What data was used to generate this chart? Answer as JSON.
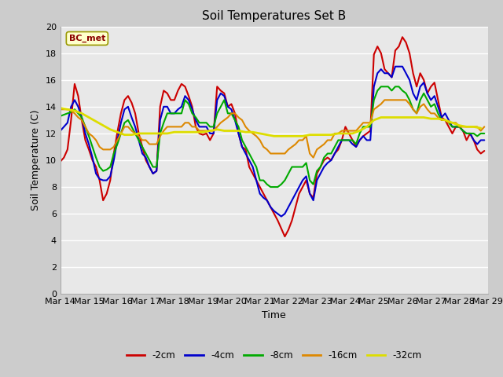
{
  "title": "Soil Temperatures Set B",
  "xlabel": "Time",
  "ylabel": "Soil Temperature (C)",
  "annotation": "BC_met",
  "ylim": [
    0,
    20
  ],
  "series": {
    "-2cm": {
      "color": "#cc0000",
      "lw": 1.5,
      "x": [
        0,
        0.25,
        0.5,
        0.75,
        1,
        1.25,
        1.5,
        1.75,
        2,
        2.25,
        2.5,
        2.75,
        3,
        3.25,
        3.5,
        3.75,
        4,
        4.25,
        4.5,
        4.75,
        5,
        5.25,
        5.5,
        5.75,
        6,
        6.25,
        6.5,
        6.75,
        7,
        7.25,
        7.5,
        7.75,
        8,
        8.25,
        8.5,
        8.75,
        9,
        9.25,
        9.5,
        9.75,
        10,
        10.25,
        10.5,
        10.75,
        11,
        11.25,
        11.5,
        11.75,
        12,
        12.25,
        12.5,
        12.75,
        13,
        13.25,
        13.5,
        13.75,
        14,
        14.25,
        14.5,
        14.75,
        15,
        15.25,
        15.5,
        15.75,
        16,
        16.25,
        16.5,
        16.75,
        17,
        17.25,
        17.5,
        17.75,
        18,
        18.25,
        18.5,
        18.75,
        19,
        19.25,
        19.5,
        19.75,
        20,
        20.25,
        20.5,
        20.75,
        21,
        21.25,
        21.5,
        21.75,
        22,
        22.25,
        22.5,
        22.75,
        23,
        23.25,
        23.5,
        23.75,
        24,
        24.25,
        24.5,
        24.75,
        25,
        25.25,
        25.5,
        25.75,
        26,
        26.25,
        26.5,
        26.75,
        27,
        27.25,
        27.5,
        27.75,
        28,
        28.25,
        28.5,
        28.75,
        29,
        29.25,
        29.5,
        29.75
      ],
      "y": [
        9.9,
        10.2,
        10.8,
        13.0,
        15.7,
        14.8,
        13.0,
        11.5,
        10.8,
        10.0,
        9.5,
        8.5,
        7.0,
        7.5,
        8.5,
        10.5,
        12.1,
        13.5,
        14.5,
        14.8,
        14.3,
        13.5,
        12.0,
        11.0,
        10.0,
        9.5,
        9.0,
        9.2,
        14.0,
        15.2,
        15.0,
        14.5,
        14.5,
        15.2,
        15.7,
        15.5,
        14.8,
        14.0,
        12.5,
        12.0,
        11.9,
        12.0,
        11.5,
        12.0,
        15.5,
        15.2,
        15.0,
        14.0,
        14.2,
        13.5,
        12.0,
        11.0,
        10.8,
        9.5,
        9.0,
        8.5,
        8.0,
        7.5,
        7.0,
        6.5,
        6.0,
        5.5,
        4.9,
        4.3,
        4.8,
        5.5,
        6.5,
        7.5,
        8.0,
        8.5,
        7.5,
        7.2,
        9.0,
        9.5,
        10.0,
        10.2,
        10.0,
        10.5,
        10.8,
        11.5,
        12.5,
        12.0,
        11.5,
        11.0,
        11.5,
        11.8,
        12.0,
        12.2,
        17.9,
        18.5,
        18.0,
        16.8,
        16.5,
        16.2,
        18.2,
        18.5,
        19.2,
        18.8,
        18.0,
        16.5,
        15.5,
        16.5,
        16.0,
        15.0,
        15.5,
        15.8,
        14.5,
        13.2,
        13.0,
        12.5,
        12.0,
        12.5,
        12.5,
        12.2,
        11.5,
        12.0,
        11.5,
        10.8,
        10.5,
        10.7
      ]
    },
    "-4cm": {
      "color": "#0000cc",
      "lw": 1.5,
      "x": [
        0,
        0.25,
        0.5,
        0.75,
        1,
        1.25,
        1.5,
        1.75,
        2,
        2.25,
        2.5,
        2.75,
        3,
        3.25,
        3.5,
        3.75,
        4,
        4.25,
        4.5,
        4.75,
        5,
        5.25,
        5.5,
        5.75,
        6,
        6.25,
        6.5,
        6.75,
        7,
        7.25,
        7.5,
        7.75,
        8,
        8.25,
        8.5,
        8.75,
        9,
        9.25,
        9.5,
        9.75,
        10,
        10.25,
        10.5,
        10.75,
        11,
        11.25,
        11.5,
        11.75,
        12,
        12.25,
        12.5,
        12.75,
        13,
        13.25,
        13.5,
        13.75,
        14,
        14.25,
        14.5,
        14.75,
        15,
        15.25,
        15.5,
        15.75,
        16,
        16.25,
        16.5,
        16.75,
        17,
        17.25,
        17.5,
        17.75,
        18,
        18.25,
        18.5,
        18.75,
        19,
        19.25,
        19.5,
        19.75,
        20,
        20.25,
        20.5,
        20.75,
        21,
        21.25,
        21.5,
        21.75,
        22,
        22.25,
        22.5,
        22.75,
        23,
        23.25,
        23.5,
        23.75,
        24,
        24.25,
        24.5,
        24.75,
        25,
        25.25,
        25.5,
        25.75,
        26,
        26.25,
        26.5,
        26.75,
        27,
        27.25,
        27.5,
        27.75,
        28,
        28.25,
        28.5,
        28.75,
        29,
        29.25,
        29.5,
        29.75
      ],
      "y": [
        12.2,
        12.5,
        12.8,
        14.0,
        14.5,
        14.0,
        13.2,
        12.0,
        11.2,
        10.2,
        9.0,
        8.6,
        8.5,
        8.5,
        8.8,
        10.0,
        11.5,
        12.8,
        13.8,
        14.0,
        13.2,
        12.5,
        11.5,
        10.5,
        10.2,
        9.5,
        9.0,
        9.2,
        13.0,
        14.0,
        14.0,
        13.5,
        13.5,
        13.8,
        14.0,
        14.8,
        14.5,
        13.8,
        13.0,
        12.5,
        12.5,
        12.5,
        12.0,
        12.0,
        14.5,
        15.0,
        14.8,
        14.0,
        13.8,
        13.0,
        12.0,
        11.0,
        10.5,
        10.0,
        9.5,
        8.5,
        7.5,
        7.2,
        7.0,
        6.5,
        6.2,
        6.0,
        5.8,
        6.0,
        6.5,
        7.0,
        7.5,
        8.0,
        8.5,
        8.8,
        7.5,
        7.0,
        8.5,
        9.0,
        9.5,
        9.8,
        10.0,
        10.5,
        11.0,
        11.5,
        11.5,
        11.5,
        11.2,
        11.0,
        11.5,
        11.8,
        11.5,
        11.5,
        15.5,
        16.5,
        16.8,
        16.5,
        16.5,
        16.2,
        17.0,
        17.0,
        17.0,
        16.5,
        16.0,
        15.0,
        14.5,
        15.5,
        15.8,
        15.0,
        14.5,
        14.8,
        14.0,
        13.2,
        13.5,
        13.0,
        12.5,
        12.5,
        12.5,
        12.2,
        12.0,
        12.0,
        11.5,
        11.2,
        11.5,
        11.5
      ]
    },
    "-8cm": {
      "color": "#00aa00",
      "lw": 1.5,
      "x": [
        0,
        0.25,
        0.5,
        0.75,
        1,
        1.25,
        1.5,
        1.75,
        2,
        2.25,
        2.5,
        2.75,
        3,
        3.25,
        3.5,
        3.75,
        4,
        4.25,
        4.5,
        4.75,
        5,
        5.25,
        5.5,
        5.75,
        6,
        6.25,
        6.5,
        6.75,
        7,
        7.25,
        7.5,
        7.75,
        8,
        8.25,
        8.5,
        8.75,
        9,
        9.25,
        9.5,
        9.75,
        10,
        10.25,
        10.5,
        10.75,
        11,
        11.25,
        11.5,
        11.75,
        12,
        12.25,
        12.5,
        12.75,
        13,
        13.25,
        13.5,
        13.75,
        14,
        14.25,
        14.5,
        14.75,
        15,
        15.25,
        15.5,
        15.75,
        16,
        16.25,
        16.5,
        16.75,
        17,
        17.25,
        17.5,
        17.75,
        18,
        18.25,
        18.5,
        18.75,
        19,
        19.25,
        19.5,
        19.75,
        20,
        20.25,
        20.5,
        20.75,
        21,
        21.25,
        21.5,
        21.75,
        22,
        22.25,
        22.5,
        22.75,
        23,
        23.25,
        23.5,
        23.75,
        24,
        24.25,
        24.5,
        24.75,
        25,
        25.25,
        25.5,
        25.75,
        26,
        26.25,
        26.5,
        26.75,
        27,
        27.25,
        27.5,
        27.75,
        28,
        28.25,
        28.5,
        28.75,
        29,
        29.25,
        29.5,
        29.75
      ],
      "y": [
        13.3,
        13.4,
        13.5,
        13.6,
        13.8,
        13.5,
        13.2,
        12.5,
        11.8,
        11.0,
        10.2,
        9.5,
        9.2,
        9.3,
        9.5,
        10.5,
        11.2,
        12.0,
        12.8,
        13.0,
        12.5,
        12.0,
        11.5,
        11.0,
        10.5,
        10.0,
        9.5,
        9.5,
        12.0,
        12.8,
        13.5,
        13.5,
        13.5,
        13.5,
        13.5,
        14.5,
        14.2,
        13.5,
        13.2,
        12.8,
        12.8,
        12.8,
        12.5,
        12.5,
        13.5,
        14.0,
        14.5,
        13.5,
        13.5,
        13.0,
        12.5,
        11.5,
        11.0,
        10.5,
        10.0,
        9.5,
        8.5,
        8.5,
        8.2,
        8.0,
        8.0,
        8.0,
        8.2,
        8.5,
        9.0,
        9.5,
        9.5,
        9.5,
        9.5,
        9.8,
        8.5,
        8.2,
        9.2,
        9.5,
        10.2,
        10.5,
        10.5,
        11.0,
        11.5,
        11.5,
        11.5,
        11.5,
        11.5,
        11.2,
        12.0,
        12.5,
        12.5,
        12.5,
        14.5,
        15.2,
        15.5,
        15.5,
        15.5,
        15.2,
        15.5,
        15.5,
        15.2,
        15.0,
        14.5,
        13.8,
        13.5,
        14.5,
        15.0,
        14.5,
        14.0,
        14.2,
        13.5,
        13.0,
        13.0,
        12.8,
        12.5,
        12.5,
        12.5,
        12.2,
        12.0,
        12.0,
        12.0,
        11.8,
        12.0,
        12.0
      ]
    },
    "-16cm": {
      "color": "#dd8800",
      "lw": 1.5,
      "x": [
        0,
        0.25,
        0.5,
        0.75,
        1,
        1.25,
        1.5,
        1.75,
        2,
        2.25,
        2.5,
        2.75,
        3,
        3.25,
        3.5,
        3.75,
        4,
        4.25,
        4.5,
        4.75,
        5,
        5.25,
        5.5,
        5.75,
        6,
        6.25,
        6.5,
        6.75,
        7,
        7.25,
        7.5,
        7.75,
        8,
        8.25,
        8.5,
        8.75,
        9,
        9.25,
        9.5,
        9.75,
        10,
        10.25,
        10.5,
        10.75,
        11,
        11.25,
        11.5,
        11.75,
        12,
        12.25,
        12.5,
        12.75,
        13,
        13.25,
        13.5,
        13.75,
        14,
        14.25,
        14.5,
        14.75,
        15,
        15.25,
        15.5,
        15.75,
        16,
        16.25,
        16.5,
        16.75,
        17,
        17.25,
        17.5,
        17.75,
        18,
        18.25,
        18.5,
        18.75,
        19,
        19.25,
        19.5,
        19.75,
        20,
        20.25,
        20.5,
        20.75,
        21,
        21.25,
        21.5,
        21.75,
        22,
        22.25,
        22.5,
        22.75,
        23,
        23.25,
        23.5,
        23.75,
        24,
        24.25,
        24.5,
        24.75,
        25,
        25.25,
        25.5,
        25.75,
        26,
        26.25,
        26.5,
        26.75,
        27,
        27.25,
        27.5,
        27.75,
        28,
        28.25,
        28.5,
        28.75,
        29,
        29.25,
        29.5,
        29.75
      ],
      "y": [
        13.8,
        13.8,
        13.8,
        13.7,
        13.5,
        13.2,
        13.0,
        12.5,
        12.0,
        11.8,
        11.5,
        11.0,
        10.8,
        10.8,
        10.8,
        11.0,
        11.5,
        12.0,
        12.5,
        12.5,
        12.2,
        12.0,
        11.8,
        11.5,
        11.5,
        11.2,
        11.2,
        11.2,
        11.8,
        12.2,
        12.5,
        12.5,
        12.5,
        12.5,
        12.5,
        12.8,
        12.8,
        12.5,
        12.5,
        12.2,
        12.2,
        12.2,
        12.2,
        12.2,
        12.5,
        12.8,
        13.0,
        13.2,
        13.5,
        13.5,
        13.2,
        13.0,
        12.5,
        12.2,
        12.0,
        11.8,
        11.5,
        11.0,
        10.8,
        10.5,
        10.5,
        10.5,
        10.5,
        10.5,
        10.8,
        11.0,
        11.2,
        11.5,
        11.5,
        11.8,
        10.5,
        10.2,
        10.8,
        11.0,
        11.2,
        11.5,
        11.5,
        12.0,
        12.0,
        12.2,
        12.2,
        12.2,
        12.2,
        12.2,
        12.5,
        12.8,
        12.8,
        12.8,
        13.8,
        14.0,
        14.2,
        14.5,
        14.5,
        14.5,
        14.5,
        14.5,
        14.5,
        14.5,
        14.2,
        13.8,
        13.5,
        14.0,
        14.2,
        13.8,
        13.5,
        13.5,
        13.2,
        13.0,
        13.0,
        12.8,
        12.8,
        12.8,
        12.5,
        12.5,
        12.5,
        12.5,
        12.5,
        12.5,
        12.2,
        12.5
      ]
    },
    "-32cm": {
      "color": "#dddd00",
      "lw": 2.0,
      "x": [
        0,
        0.5,
        1,
        1.5,
        2,
        2.5,
        3,
        3.5,
        4,
        4.5,
        5,
        5.5,
        6,
        6.5,
        7,
        7.5,
        8,
        8.5,
        9,
        9.5,
        10,
        10.5,
        11,
        11.5,
        12,
        12.5,
        13,
        13.5,
        14,
        14.5,
        15,
        15.5,
        16,
        16.5,
        17,
        17.5,
        18,
        18.5,
        19,
        19.5,
        20,
        20.5,
        21,
        21.5,
        22,
        22.5,
        23,
        23.5,
        24,
        24.5,
        25,
        25.5,
        26,
        26.5,
        27,
        27.5,
        28,
        28.5,
        29,
        29.5
      ],
      "y": [
        13.9,
        13.8,
        13.7,
        13.5,
        13.2,
        12.9,
        12.6,
        12.3,
        12.1,
        11.9,
        11.9,
        12.0,
        12.0,
        12.0,
        12.0,
        12.0,
        12.1,
        12.1,
        12.1,
        12.1,
        12.1,
        12.2,
        12.3,
        12.2,
        12.2,
        12.2,
        12.1,
        12.1,
        12.0,
        11.9,
        11.8,
        11.8,
        11.8,
        11.8,
        11.8,
        11.9,
        11.9,
        11.9,
        11.9,
        12.0,
        12.0,
        12.0,
        12.2,
        12.5,
        13.0,
        13.2,
        13.2,
        13.2,
        13.2,
        13.2,
        13.2,
        13.2,
        13.1,
        13.1,
        13.0,
        12.8,
        12.6,
        12.5,
        12.5,
        12.4
      ]
    }
  },
  "xtick_labels": [
    "Mar 14",
    "Mar 15",
    "Mar 16",
    "Mar 17",
    "Mar 18",
    "Mar 19",
    "Mar 20",
    "Mar 21",
    "Mar 22",
    "Mar 23",
    "Mar 24",
    "Mar 25",
    "Mar 26",
    "Mar 27",
    "Mar 28",
    "Mar 29"
  ],
  "xtick_positions": [
    0,
    2,
    4,
    6,
    8,
    10,
    12,
    14,
    16,
    18,
    20,
    22,
    24,
    26,
    28,
    30
  ],
  "ytick_labels": [
    "0",
    "2",
    "4",
    "6",
    "8",
    "10",
    "12",
    "14",
    "16",
    "18",
    "20"
  ],
  "ytick_positions": [
    0,
    2,
    4,
    6,
    8,
    10,
    12,
    14,
    16,
    18,
    20
  ]
}
